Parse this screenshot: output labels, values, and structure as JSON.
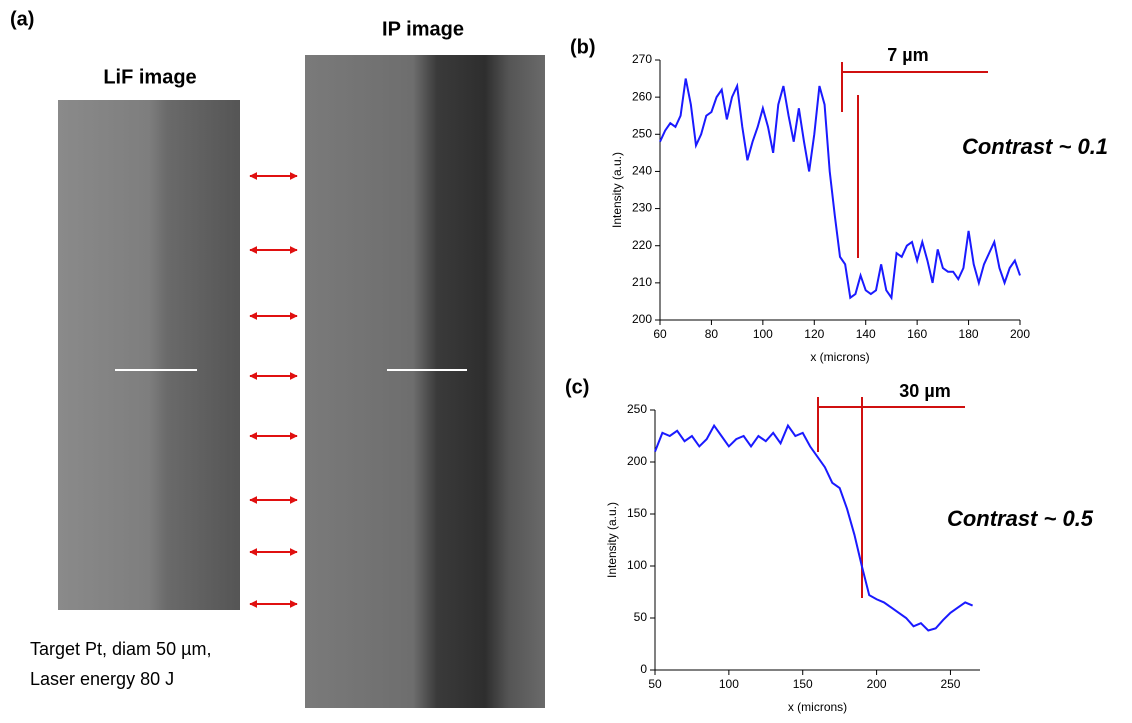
{
  "figure": {
    "panel_a": "(a)",
    "lif_label": "LiF image",
    "ip_label": "IP image",
    "caption": [
      "Target Pt, diam 50 µm,",
      "Laser energy 80 J"
    ]
  },
  "chart_data": [
    {
      "type": "line",
      "title": "(b)",
      "x_label": "x (microns)",
      "y_label": "Intensity (a.u.)",
      "annotations": [
        "7 µm",
        "Contrast ~ 0.1"
      ],
      "x": [
        60,
        62,
        64,
        66,
        68,
        70,
        72,
        74,
        76,
        78,
        80,
        82,
        84,
        86,
        88,
        90,
        92,
        94,
        96,
        98,
        100,
        102,
        104,
        106,
        108,
        110,
        112,
        114,
        116,
        118,
        120,
        122,
        124,
        126,
        128,
        130,
        132,
        134,
        136,
        138,
        140,
        142,
        144,
        146,
        148,
        150,
        152,
        154,
        156,
        158,
        160,
        162,
        164,
        166,
        168,
        170,
        172,
        174,
        176,
        178,
        180,
        182,
        184,
        186,
        188,
        190,
        192,
        194,
        196,
        198,
        200
      ],
      "series": [
        {
          "name": "profile",
          "color": "#1a1aff",
          "values": [
            248,
            251,
            253,
            252,
            255,
            265,
            258,
            247,
            250,
            255,
            256,
            260,
            262,
            254,
            260,
            263,
            252,
            243,
            248,
            252,
            257,
            252,
            245,
            258,
            263,
            255,
            248,
            257,
            248,
            240,
            250,
            263,
            258,
            240,
            228,
            217,
            215,
            206,
            207,
            212,
            208,
            207,
            208,
            215,
            208,
            206,
            218,
            217,
            220,
            221,
            216,
            221,
            216,
            210,
            219,
            214,
            213,
            213,
            211,
            214,
            224,
            215,
            210,
            215,
            218,
            221,
            214,
            210,
            214,
            216,
            212
          ]
        }
      ],
      "xlim": [
        60,
        200
      ],
      "ylim": [
        200,
        270
      ],
      "xticks": [
        60,
        80,
        100,
        120,
        140,
        160,
        180,
        200
      ],
      "yticks": [
        200,
        210,
        220,
        230,
        240,
        250,
        260,
        270
      ]
    },
    {
      "type": "line",
      "title": "(c)",
      "x_label": "x (microns)",
      "y_label": "Intensity (a.u.)",
      "annotations": [
        "30 µm",
        "Contrast ~ 0.5"
      ],
      "x": [
        50,
        55,
        60,
        65,
        70,
        75,
        80,
        85,
        90,
        95,
        100,
        105,
        110,
        115,
        120,
        125,
        130,
        135,
        140,
        145,
        150,
        155,
        160,
        165,
        170,
        175,
        180,
        185,
        190,
        195,
        200,
        205,
        210,
        215,
        220,
        225,
        230,
        235,
        240,
        245,
        250,
        255,
        260,
        265
      ],
      "series": [
        {
          "name": "profile",
          "color": "#1a1aff",
          "values": [
            210,
            228,
            225,
            230,
            220,
            225,
            215,
            222,
            235,
            225,
            215,
            222,
            225,
            215,
            225,
            220,
            228,
            218,
            235,
            225,
            228,
            215,
            205,
            195,
            180,
            175,
            155,
            130,
            100,
            72,
            68,
            65,
            60,
            55,
            50,
            42,
            45,
            38,
            40,
            48,
            55,
            60,
            65,
            62
          ]
        }
      ],
      "xlim": [
        50,
        270
      ],
      "ylim": [
        0,
        250
      ],
      "xticks": [
        50,
        100,
        150,
        200,
        250
      ],
      "yticks": [
        0,
        50,
        100,
        150,
        200,
        250
      ]
    }
  ]
}
